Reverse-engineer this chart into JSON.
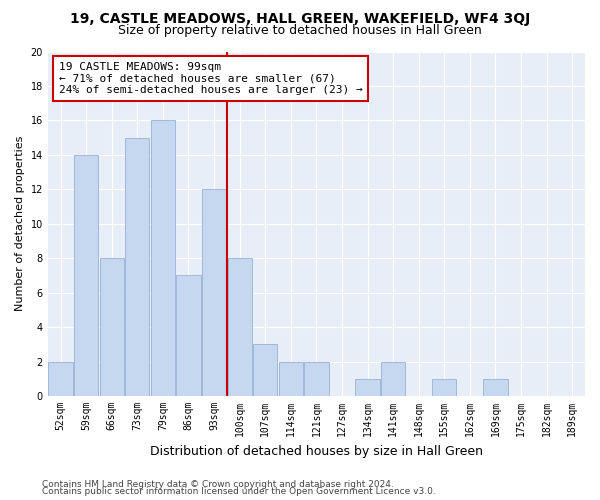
{
  "title1": "19, CASTLE MEADOWS, HALL GREEN, WAKEFIELD, WF4 3QJ",
  "title2": "Size of property relative to detached houses in Hall Green",
  "xlabel": "Distribution of detached houses by size in Hall Green",
  "ylabel": "Number of detached properties",
  "categories": [
    "52sqm",
    "59sqm",
    "66sqm",
    "73sqm",
    "79sqm",
    "86sqm",
    "93sqm",
    "100sqm",
    "107sqm",
    "114sqm",
    "121sqm",
    "127sqm",
    "134sqm",
    "141sqm",
    "148sqm",
    "155sqm",
    "162sqm",
    "169sqm",
    "175sqm",
    "182sqm",
    "189sqm"
  ],
  "values": [
    2,
    14,
    8,
    15,
    16,
    7,
    12,
    8,
    3,
    2,
    2,
    0,
    1,
    2,
    0,
    1,
    0,
    1,
    0,
    0,
    0
  ],
  "bar_color": "#c5d8f0",
  "bar_edge_color": "#a0b8d8",
  "highlight_line_color": "#cc0000",
  "annotation_text": "19 CASTLE MEADOWS: 99sqm\n← 71% of detached houses are smaller (67)\n24% of semi-detached houses are larger (23) →",
  "annotation_box_color": "#cc0000",
  "background_color": "#e8eef7",
  "ylim": [
    0,
    20
  ],
  "yticks": [
    0,
    2,
    4,
    6,
    8,
    10,
    12,
    14,
    16,
    18,
    20
  ],
  "footer1": "Contains HM Land Registry data © Crown copyright and database right 2024.",
  "footer2": "Contains public sector information licensed under the Open Government Licence v3.0.",
  "title1_fontsize": 10,
  "title2_fontsize": 9,
  "xlabel_fontsize": 9,
  "ylabel_fontsize": 8,
  "tick_fontsize": 7,
  "annotation_fontsize": 8,
  "footer_fontsize": 6.5
}
